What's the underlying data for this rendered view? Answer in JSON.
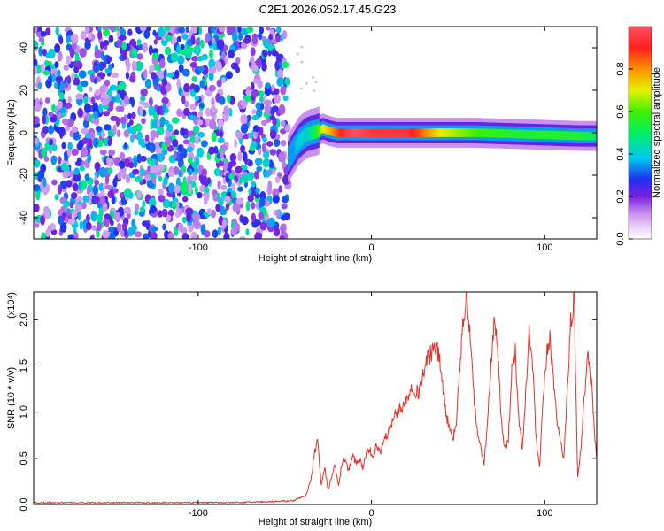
{
  "title": "C2E1.2026.052.17.45.G23",
  "chart_data": [
    {
      "type": "heatmap",
      "xlabel": "Height of straight line (km)",
      "ylabel": "Frequency (Hz)",
      "xlim": [
        -195,
        130
      ],
      "ylim": [
        -50,
        50
      ],
      "xticks": [
        -100,
        0,
        100
      ],
      "yticks": [
        -40,
        -20,
        0,
        20,
        40
      ],
      "colorbar": {
        "label": "Normalized spectral amplitude",
        "range": [
          0,
          1
        ],
        "ticks": [
          0.0,
          0.2,
          0.4,
          0.6,
          0.8
        ]
      },
      "noise_region": {
        "x": [
          -195,
          -48
        ],
        "y": [
          -50,
          50
        ],
        "amplitude": [
          0.1,
          0.5
        ]
      },
      "signal_ridge": {
        "x": [
          -48,
          -45,
          -42,
          -38,
          -35,
          -32,
          -28,
          -25,
          -20,
          -15,
          -10,
          0,
          20,
          40,
          60,
          80,
          100,
          120,
          130
        ],
        "freq": [
          -12,
          -8,
          -4,
          -1,
          0,
          0.5,
          2,
          1,
          0,
          0,
          0,
          0,
          0,
          0,
          0,
          -0.5,
          -1,
          -1.5,
          -1.5
        ],
        "peak_amplitude": [
          0.35,
          0.35,
          0.4,
          0.4,
          0.45,
          0.55,
          0.7,
          0.75,
          0.85,
          0.95,
          1.0,
          0.95,
          0.95,
          0.7,
          0.6,
          0.55,
          0.55,
          0.55,
          0.5
        ]
      }
    },
    {
      "type": "line",
      "xlabel": "Height of straight line (km)",
      "ylabel": "SNR (10 * v/v)",
      "yscale_label": "(x10⁴)",
      "xlim": [
        -195,
        130
      ],
      "ylim": [
        0,
        2.3
      ],
      "xticks": [
        -100,
        0,
        100
      ],
      "yticks": [
        0.0,
        0.5,
        1.0,
        1.5,
        2.0
      ],
      "color": "#e8302a",
      "series": [
        {
          "x": [
            -195,
            -180,
            -160,
            -140,
            -120,
            -100,
            -80,
            -60,
            -45,
            -38,
            -35,
            -33,
            -31,
            -29,
            -27,
            -25,
            -23,
            -21,
            -19,
            -17,
            -15,
            -13,
            -11,
            -9,
            -7,
            -5,
            -3,
            -1,
            1,
            3,
            5,
            7,
            9,
            11,
            13,
            15,
            17,
            19,
            21,
            23,
            25,
            27,
            29,
            31,
            33,
            35,
            37,
            39,
            41,
            43,
            45,
            47,
            49,
            51,
            53,
            55,
            57,
            59,
            61,
            63,
            65,
            67,
            69,
            71,
            73,
            75,
            77,
            79,
            81,
            83,
            85,
            87,
            89,
            91,
            93,
            95,
            97,
            99,
            101,
            103,
            105,
            107,
            109,
            111,
            113,
            115,
            117,
            119,
            121,
            123,
            125,
            127,
            129,
            130
          ],
          "y": [
            0.02,
            0.02,
            0.02,
            0.02,
            0.02,
            0.02,
            0.02,
            0.03,
            0.04,
            0.1,
            0.25,
            0.55,
            0.7,
            0.2,
            0.4,
            0.15,
            0.3,
            0.42,
            0.2,
            0.45,
            0.5,
            0.35,
            0.55,
            0.45,
            0.5,
            0.4,
            0.55,
            0.6,
            0.5,
            0.65,
            0.55,
            0.7,
            0.75,
            0.85,
            0.95,
            1.0,
            1.05,
            1.1,
            1.15,
            1.3,
            1.25,
            1.2,
            1.35,
            1.5,
            1.6,
            1.65,
            1.7,
            1.6,
            1.3,
            1.0,
            0.8,
            0.7,
            0.9,
            1.5,
            2.0,
            2.25,
            1.8,
            1.2,
            0.8,
            0.6,
            0.45,
            0.9,
            1.5,
            2.0,
            1.6,
            0.9,
            0.6,
            0.7,
            1.5,
            1.65,
            0.9,
            0.6,
            1.2,
            1.85,
            1.5,
            0.7,
            0.4,
            1.1,
            1.6,
            1.8,
            1.4,
            0.9,
            0.7,
            0.5,
            1.2,
            2.0,
            2.2,
            0.3,
            0.6,
            1.2,
            1.6,
            1.3,
            0.7,
            0.5
          ]
        }
      ]
    }
  ]
}
